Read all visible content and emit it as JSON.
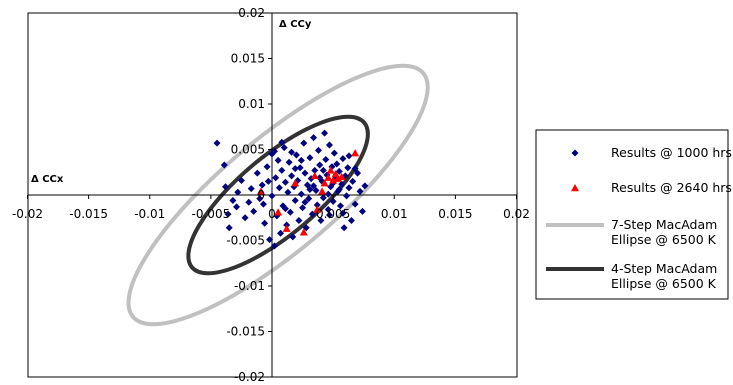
{
  "chart_data": {
    "type": "scatter",
    "title": "",
    "xlabel": "Δ CCx",
    "ylabel": "Δ CCy",
    "xlim": [
      -0.02,
      0.02
    ],
    "ylim": [
      -0.02,
      0.02
    ],
    "x_ticks": [
      "-0.02",
      "-0.015",
      "-0.01",
      "-0.005",
      "0",
      "0.005",
      "0.01",
      "0.015",
      "0.02"
    ],
    "y_ticks": [
      "0.02",
      "0.015",
      "0.01",
      "0.005",
      "0",
      "-0.005",
      "-0.01",
      "-0.015",
      "-0.02"
    ],
    "grid": false,
    "legend_position": "right",
    "series": [
      {
        "name": "Results @ 1000 hrs",
        "kind": "points",
        "marker": "diamond",
        "color": "#000080",
        "points": [
          [
            -0.0045,
            0.0057
          ],
          [
            -0.0039,
            0.0033
          ],
          [
            -0.0038,
            0.0009
          ],
          [
            -0.0036,
            -0.0021
          ],
          [
            -0.0035,
            -0.0036
          ],
          [
            -0.0032,
            -0.0006
          ],
          [
            -0.0029,
            -0.0013
          ],
          [
            -0.0028,
            0.0003
          ],
          [
            -0.0025,
            0.0016
          ],
          [
            -0.0022,
            -0.0025
          ],
          [
            -0.0019,
            -0.0008
          ],
          [
            -0.0017,
            0.0007
          ],
          [
            -0.0015,
            -0.0018
          ],
          [
            -0.0012,
            0.0024
          ],
          [
            -0.001,
            -0.0004
          ],
          [
            -0.0008,
            0.0011
          ],
          [
            -0.0006,
            -0.0031
          ],
          [
            -0.0004,
            0.0031
          ],
          [
            -0.0002,
            -0.0049
          ],
          [
            0.0,
            0.0045
          ],
          [
            0.0,
            -0.0001
          ],
          [
            0.0002,
            -0.0056
          ],
          [
            0.0003,
            0.0019
          ],
          [
            0.0004,
            -0.0023
          ],
          [
            0.0005,
            0.0038
          ],
          [
            0.0006,
            0.0008
          ],
          [
            0.0007,
            -0.0042
          ],
          [
            0.0008,
            0.0027
          ],
          [
            0.0009,
            -0.0012
          ],
          [
            0.001,
            0.0052
          ],
          [
            0.0011,
            0.0014
          ],
          [
            0.0012,
            -0.0033
          ],
          [
            0.0013,
            0.0003
          ],
          [
            0.0014,
            0.0036
          ],
          [
            0.0015,
            -0.0019
          ],
          [
            0.0016,
            0.0021
          ],
          [
            0.0017,
            -0.0046
          ],
          [
            0.0018,
            0.0009
          ],
          [
            0.0019,
            -0.0006
          ],
          [
            0.002,
            0.0044
          ],
          [
            0.0021,
            0.0016
          ],
          [
            0.0022,
            -0.0028
          ],
          [
            0.0023,
            0.003
          ],
          [
            0.0024,
            0.0001
          ],
          [
            0.0025,
            -0.0014
          ],
          [
            0.0026,
            0.0057
          ],
          [
            0.0027,
            0.0024
          ],
          [
            0.0028,
            -0.0036
          ],
          [
            0.0029,
            0.0011
          ],
          [
            0.003,
            -0.0004
          ],
          [
            0.0031,
            0.0041
          ],
          [
            0.0032,
            0.0018
          ],
          [
            0.0033,
            -0.0021
          ],
          [
            0.0034,
            0.0063
          ],
          [
            0.0035,
            0.0027
          ],
          [
            0.0036,
            0.0005
          ],
          [
            0.0037,
            -0.0011
          ],
          [
            0.0038,
            0.0049
          ],
          [
            0.0039,
            0.0033
          ],
          [
            0.004,
            -0.0028
          ],
          [
            0.0041,
            0.0015
          ],
          [
            0.0042,
            -0.0003
          ],
          [
            0.0043,
            0.0068
          ],
          [
            0.0044,
            0.0039
          ],
          [
            0.0045,
            0.0022
          ],
          [
            0.0046,
            -0.0016
          ],
          [
            0.0047,
            0.0055
          ],
          [
            0.0048,
            0.0009
          ],
          [
            0.0049,
            0.0031
          ],
          [
            0.005,
            -0.0007
          ],
          [
            0.0051,
            0.0046
          ],
          [
            0.0052,
            0.0018
          ],
          [
            0.0053,
            0.0034
          ],
          [
            0.0054,
            0.0004
          ],
          [
            0.0055,
            0.0026
          ],
          [
            0.0056,
            -0.0012
          ],
          [
            0.0057,
            0.0012
          ],
          [
            0.0058,
            0.004
          ],
          [
            0.0059,
            -0.0036
          ],
          [
            0.006,
            0.0021
          ],
          [
            0.0061,
            -0.0001
          ],
          [
            0.0062,
            0.003
          ],
          [
            0.0063,
            0.0008
          ],
          [
            0.0065,
            -0.0028
          ],
          [
            0.0066,
            0.0015
          ],
          [
            0.0068,
            -0.001
          ],
          [
            0.007,
            0.0024
          ],
          [
            0.0072,
            0.0004
          ],
          [
            0.0074,
            -0.0018
          ],
          [
            0.0076,
            0.001
          ],
          [
            0.0002,
            0.0048
          ],
          [
            0.0008,
            0.0058
          ],
          [
            0.0016,
            0.0047
          ],
          [
            0.0024,
            0.0038
          ],
          [
            0.0031,
            0.0006
          ],
          [
            0.0039,
            0.0019
          ],
          [
            0.0047,
            -0.0022
          ],
          [
            0.0055,
            0.0006
          ],
          [
            0.0063,
            0.0043
          ],
          [
            0.0027,
            -0.0008
          ],
          [
            0.0019,
            0.0029
          ],
          [
            0.0011,
            -0.0015
          ],
          [
            0.0034,
            0.001
          ],
          [
            0.0042,
            0.0027
          ],
          [
            0.005,
            0.0013
          ],
          [
            0.0058,
            -0.002
          ],
          [
            -0.0003,
            0.0015
          ],
          [
            -0.0007,
            -0.001
          ],
          [
            0.0068,
            0.0029
          ],
          [
            0.0046,
            0.0001
          ]
        ]
      },
      {
        "name": "Results @ 2640 hrs",
        "kind": "points",
        "marker": "triangle",
        "color": "#ff0000",
        "points": [
          [
            -0.0009,
            0.0004
          ],
          [
            0.0005,
            -0.0019
          ],
          [
            0.0012,
            -0.0037
          ],
          [
            0.0019,
            0.0013
          ],
          [
            0.0026,
            -0.0041
          ],
          [
            0.0035,
            0.0021
          ],
          [
            0.0037,
            -0.0016
          ],
          [
            0.0041,
            0.0004
          ],
          [
            0.0043,
            0.0013
          ],
          [
            0.0046,
            0.0019
          ],
          [
            0.0048,
            0.0027
          ],
          [
            0.005,
            0.0016
          ],
          [
            0.0052,
            0.0023
          ],
          [
            0.0054,
            0.0018
          ],
          [
            0.0057,
            0.002
          ],
          [
            0.0068,
            0.0046
          ]
        ]
      },
      {
        "name": "7-Step MacAdam Ellipse @ 6500 K",
        "kind": "ellipse",
        "color": "#c0c0c0",
        "center": [
          0.0005,
          0.0
        ],
        "semi_axes": [
          0.0155,
          0.0062
        ],
        "rotation_deg": 40
      },
      {
        "name": "4-Step MacAdam Ellipse @ 6500 K",
        "kind": "ellipse",
        "color": "#333333",
        "center": [
          0.0005,
          0.0
        ],
        "semi_axes": [
          0.0092,
          0.0043
        ],
        "rotation_deg": 40
      }
    ]
  },
  "legend": {
    "items": [
      {
        "lines": [
          "Results @ 1000 hrs"
        ]
      },
      {
        "lines": [
          "Results @ 2640 hrs"
        ]
      },
      {
        "lines": [
          "7-Step MacAdam",
          "Ellipse @ 6500 K"
        ]
      },
      {
        "lines": [
          "4-Step MacAdam",
          "Ellipse @ 6500 K"
        ]
      }
    ]
  }
}
